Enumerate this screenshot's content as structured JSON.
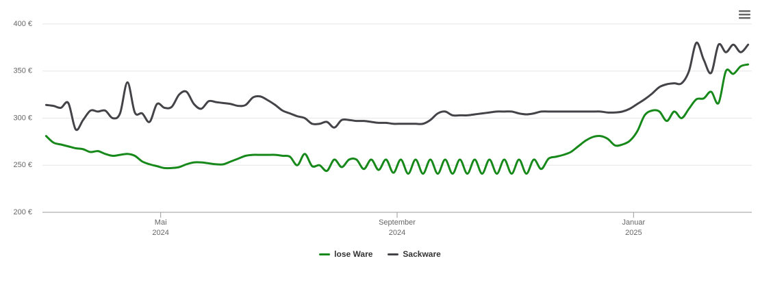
{
  "chart_data": {
    "type": "line",
    "x": [
      "2024-03",
      "2024-03",
      "2024-03",
      "2024-03",
      "2024-03",
      "2024-03",
      "2024-03",
      "2024-03",
      "2024-04",
      "2024-04",
      "2024-04",
      "2024-04",
      "2024-04",
      "2024-04",
      "2024-04",
      "2024-04",
      "2024-05",
      "2024-05",
      "2024-05",
      "2024-05",
      "2024-05",
      "2024-05",
      "2024-05",
      "2024-05",
      "2024-06",
      "2024-06",
      "2024-06",
      "2024-06",
      "2024-06",
      "2024-06",
      "2024-06",
      "2024-06",
      "2024-07",
      "2024-07",
      "2024-07",
      "2024-07",
      "2024-07",
      "2024-07",
      "2024-07",
      "2024-07",
      "2024-08",
      "2024-08",
      "2024-08",
      "2024-08",
      "2024-08",
      "2024-08",
      "2024-08",
      "2024-08",
      "2024-09",
      "2024-09",
      "2024-09",
      "2024-09",
      "2024-09",
      "2024-09",
      "2024-09",
      "2024-09",
      "2024-10",
      "2024-10",
      "2024-10",
      "2024-10",
      "2024-10",
      "2024-10",
      "2024-10",
      "2024-10",
      "2024-11",
      "2024-11",
      "2024-11",
      "2024-11",
      "2024-11",
      "2024-11",
      "2024-11",
      "2024-11",
      "2024-12",
      "2024-12",
      "2024-12",
      "2024-12",
      "2024-12",
      "2024-12",
      "2024-12",
      "2024-12",
      "2025-01",
      "2025-01",
      "2025-01",
      "2025-01",
      "2025-01",
      "2025-01",
      "2025-01",
      "2025-01",
      "2025-02",
      "2025-02",
      "2025-02",
      "2025-02",
      "2025-02",
      "2025-02",
      "2025-02",
      "2025-02"
    ],
    "series": [
      {
        "name": "lose Ware",
        "color": "#17891a",
        "values": [
          281,
          274,
          272,
          270,
          268,
          267,
          264,
          265,
          262,
          260,
          261,
          262,
          260,
          254,
          251,
          249,
          247,
          247,
          248,
          251,
          253,
          253,
          252,
          251,
          251,
          254,
          257,
          260,
          261,
          261,
          261,
          261,
          260,
          259,
          250,
          262,
          249,
          250,
          244,
          256,
          248,
          256,
          256,
          246,
          256,
          245,
          256,
          242,
          256,
          241,
          256,
          241,
          256,
          241,
          256,
          241,
          256,
          241,
          256,
          241,
          256,
          241,
          256,
          241,
          256,
          241,
          256,
          246,
          257,
          259,
          261,
          264,
          270,
          276,
          280,
          281,
          278,
          271,
          272,
          276,
          286,
          303,
          308,
          307,
          297,
          307,
          300,
          310,
          320,
          321,
          328,
          316,
          350,
          347,
          355,
          357
        ]
      },
      {
        "name": "Sackware",
        "color": "#434348",
        "values": [
          314,
          313,
          311,
          316,
          288,
          298,
          308,
          307,
          308,
          300,
          305,
          338,
          306,
          305,
          296,
          315,
          311,
          312,
          325,
          328,
          315,
          310,
          318,
          317,
          316,
          315,
          313,
          314,
          322,
          323,
          319,
          314,
          308,
          305,
          302,
          300,
          294,
          294,
          296,
          290,
          298,
          298,
          297,
          297,
          296,
          295,
          295,
          294,
          294,
          294,
          294,
          294,
          298,
          305,
          307,
          303,
          303,
          303,
          304,
          305,
          306,
          307,
          307,
          307,
          305,
          304,
          305,
          307,
          307,
          307,
          307,
          307,
          307,
          307,
          307,
          307,
          306,
          306,
          307,
          310,
          315,
          320,
          326,
          333,
          336,
          337,
          337,
          350,
          380,
          362,
          348,
          378,
          370,
          378,
          370,
          378
        ]
      }
    ],
    "xlim": [
      "2024-03",
      "2025-02"
    ],
    "xticks": [
      {
        "value": "2024-05",
        "label": "Mai 2024"
      },
      {
        "value": "2024-09",
        "label": "September 2024"
      },
      {
        "value": "2025-01",
        "label": "Januar 2025"
      }
    ],
    "ylim": [
      200,
      400
    ],
    "yticks": [
      {
        "value": 200,
        "label": "200 €"
      },
      {
        "value": 250,
        "label": "250 €"
      },
      {
        "value": 300,
        "label": "300 €"
      },
      {
        "value": 350,
        "label": "350 €"
      },
      {
        "value": 400,
        "label": "400 €"
      }
    ],
    "grid": true
  }
}
